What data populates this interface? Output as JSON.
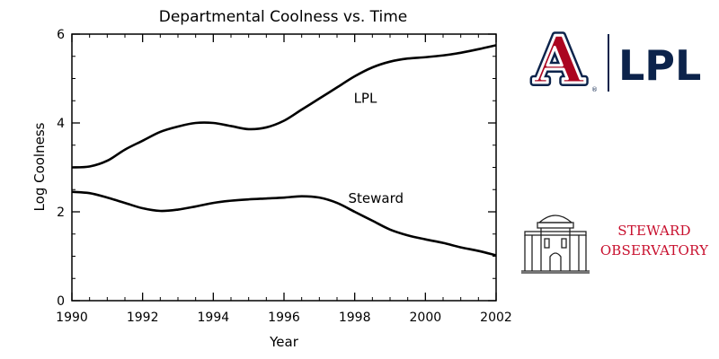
{
  "chart_data": {
    "type": "line",
    "title": "Departmental Coolness vs. Time",
    "xlabel": "Year",
    "ylabel": "Log Coolness",
    "xlim": [
      1990,
      2002
    ],
    "ylim": [
      0,
      6
    ],
    "x_ticks": [
      "1990",
      "1992",
      "1994",
      "1996",
      "1998",
      "2000",
      "2002"
    ],
    "y_ticks": [
      "0",
      "2",
      "4",
      "6"
    ],
    "grid": false,
    "legend": "none",
    "series": [
      {
        "name": "LPL",
        "x": [
          1990,
          1990.5,
          1991,
          1991.5,
          1992,
          1992.5,
          1993,
          1993.5,
          1994,
          1994.5,
          1995,
          1995.5,
          1996,
          1996.5,
          1997,
          1997.5,
          1998,
          1998.5,
          1999,
          1999.5,
          2000,
          2000.5,
          2001,
          2001.5,
          2002
        ],
        "y": [
          3.0,
          3.02,
          3.15,
          3.4,
          3.6,
          3.8,
          3.92,
          4.0,
          4.0,
          3.93,
          3.86,
          3.9,
          4.05,
          4.3,
          4.55,
          4.8,
          5.05,
          5.25,
          5.38,
          5.45,
          5.48,
          5.52,
          5.58,
          5.66,
          5.75
        ]
      },
      {
        "name": "Steward",
        "x": [
          1990,
          1990.5,
          1991,
          1991.5,
          1992,
          1992.5,
          1993,
          1993.5,
          1994,
          1994.5,
          1995,
          1995.5,
          1996,
          1996.5,
          1997,
          1997.5,
          1998,
          1998.5,
          1999,
          1999.5,
          2000,
          2000.5,
          2001,
          2001.5,
          2002
        ],
        "y": [
          2.45,
          2.42,
          2.32,
          2.2,
          2.08,
          2.02,
          2.05,
          2.12,
          2.2,
          2.25,
          2.28,
          2.3,
          2.32,
          2.35,
          2.32,
          2.2,
          2.0,
          1.8,
          1.6,
          1.47,
          1.38,
          1.3,
          1.2,
          1.12,
          1.02
        ]
      }
    ],
    "annotations": [
      {
        "text": "LPL",
        "x": 1998.3,
        "y": 4.45
      },
      {
        "text": "Steward",
        "x": 1998.6,
        "y": 2.2
      }
    ]
  },
  "logos": {
    "lpl_mark": "A",
    "lpl_text": "LPL",
    "lpl_registered": "®",
    "steward_line1": "STEWARD",
    "steward_line2": "OBSERVATORY",
    "colors": {
      "arizona_red": "#ab0520",
      "arizona_navy": "#0c234b",
      "steward_red": "#c8102e"
    }
  }
}
